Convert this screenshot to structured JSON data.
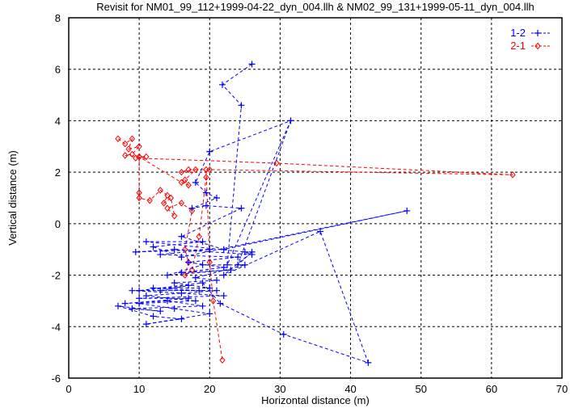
{
  "chart_data": {
    "type": "line",
    "title": "Revisit for NM01_99_112+1999-04-22_dyn_004.llh & NM02_99_131+1999-05-11_dyn_004.llh",
    "xlabel": "Horizontal distance (m)",
    "ylabel": "Vertical distance (m)",
    "xlim": [
      0,
      70
    ],
    "ylim": [
      -6,
      8
    ],
    "xticks": [
      0,
      10,
      20,
      30,
      40,
      50,
      60,
      70
    ],
    "yticks": [
      -6,
      -4,
      -2,
      0,
      2,
      4,
      6,
      8
    ],
    "grid": true,
    "legend_position": "top-right",
    "series": [
      {
        "name": "1-2",
        "color": "#0000ff",
        "marker": "plus",
        "points": [
          [
            26,
            6.2
          ],
          [
            21.8,
            5.4
          ],
          [
            24.5,
            4.6
          ],
          [
            22.5,
            -1.6
          ],
          [
            31.5,
            4.0
          ],
          [
            20,
            2.8
          ],
          [
            18,
            1.6
          ],
          [
            19.5,
            1.2
          ],
          [
            21,
            1.0
          ],
          [
            17.5,
            0.6
          ],
          [
            19.5,
            0.7
          ],
          [
            24.5,
            0.6
          ],
          [
            16,
            -0.5
          ],
          [
            22,
            -1.0
          ],
          [
            48,
            0.5
          ],
          [
            16,
            -1.3
          ],
          [
            12,
            -0.9
          ],
          [
            19,
            -0.7
          ],
          [
            11,
            -0.7
          ],
          [
            25,
            -1.1
          ],
          [
            26,
            -1.2
          ],
          [
            15,
            -1.0
          ],
          [
            9.5,
            -1.1
          ],
          [
            20,
            -1.0
          ],
          [
            13,
            -1.2
          ],
          [
            24,
            -1.3
          ],
          [
            17,
            -1.5
          ],
          [
            22,
            -1.7
          ],
          [
            16,
            -1.9
          ],
          [
            23,
            -1.8
          ],
          [
            14,
            -2.0
          ],
          [
            19,
            -1.6
          ],
          [
            25,
            -1.6
          ],
          [
            18,
            -2.1
          ],
          [
            21,
            -2.2
          ],
          [
            15,
            -2.3
          ],
          [
            20,
            -2.5
          ],
          [
            12,
            -2.5
          ],
          [
            18.5,
            -2.6
          ],
          [
            9,
            -2.6
          ],
          [
            16,
            -2.7
          ],
          [
            22,
            -2.8
          ],
          [
            10,
            -2.9
          ],
          [
            17,
            -2.9
          ],
          [
            8,
            -3.1
          ],
          [
            14,
            -3.0
          ],
          [
            19,
            -3.2
          ],
          [
            9,
            -3.3
          ],
          [
            13,
            -3.4
          ],
          [
            7,
            -3.2
          ],
          [
            12,
            -3.6
          ],
          [
            16,
            -3.7
          ],
          [
            11,
            -3.9
          ],
          [
            20,
            -3.5
          ],
          [
            15,
            -3.3
          ],
          [
            10,
            -3.1
          ],
          [
            18,
            -3.0
          ],
          [
            11,
            -2.8
          ],
          [
            21,
            -2.6
          ],
          [
            13,
            -2.6
          ],
          [
            17,
            -2.4
          ],
          [
            10,
            -2.6
          ],
          [
            19,
            -2.3
          ],
          [
            21.5,
            -3.1
          ],
          [
            30.5,
            -4.3
          ],
          [
            42.5,
            -5.4
          ],
          [
            35.7,
            -0.3
          ],
          [
            22,
            -2.0
          ],
          [
            26,
            -1.1
          ],
          [
            24,
            -1.6
          ],
          [
            31.5,
            4.0
          ]
        ]
      },
      {
        "name": "2-1",
        "color": "#ff0000",
        "marker": "diamond",
        "points": [
          [
            7,
            3.3
          ],
          [
            8,
            3.1
          ],
          [
            9,
            3.3
          ],
          [
            8.5,
            2.9
          ],
          [
            10,
            3.0
          ],
          [
            9,
            2.7
          ],
          [
            8,
            2.65
          ],
          [
            10,
            2.6
          ],
          [
            11,
            2.6
          ],
          [
            9.5,
            2.55
          ],
          [
            29.5,
            2.35
          ],
          [
            63,
            1.9
          ],
          [
            20,
            2.1
          ],
          [
            17,
            2.1
          ],
          [
            16,
            2.0
          ],
          [
            18,
            2.1
          ],
          [
            16.5,
            1.7
          ],
          [
            17,
            1.5
          ],
          [
            16,
            1.6
          ],
          [
            10,
            2.6
          ],
          [
            10,
            1.2
          ],
          [
            10,
            1.0
          ],
          [
            11.5,
            0.9
          ],
          [
            13,
            1.3
          ],
          [
            14,
            1.1
          ],
          [
            13.5,
            0.8
          ],
          [
            14.5,
            1.0
          ],
          [
            15,
            0.3
          ],
          [
            14,
            0.6
          ],
          [
            16,
            0.8
          ],
          [
            17.5,
            0.5
          ],
          [
            16.5,
            -1.0
          ],
          [
            17,
            -1.5
          ],
          [
            16.5,
            -2.0
          ],
          [
            17.5,
            -1.8
          ],
          [
            18.5,
            -0.5
          ],
          [
            19.5,
            1.8
          ],
          [
            19.5,
            2.1
          ],
          [
            20,
            -1.5
          ],
          [
            20.5,
            -3.0
          ],
          [
            21.8,
            -5.3
          ]
        ]
      }
    ]
  }
}
